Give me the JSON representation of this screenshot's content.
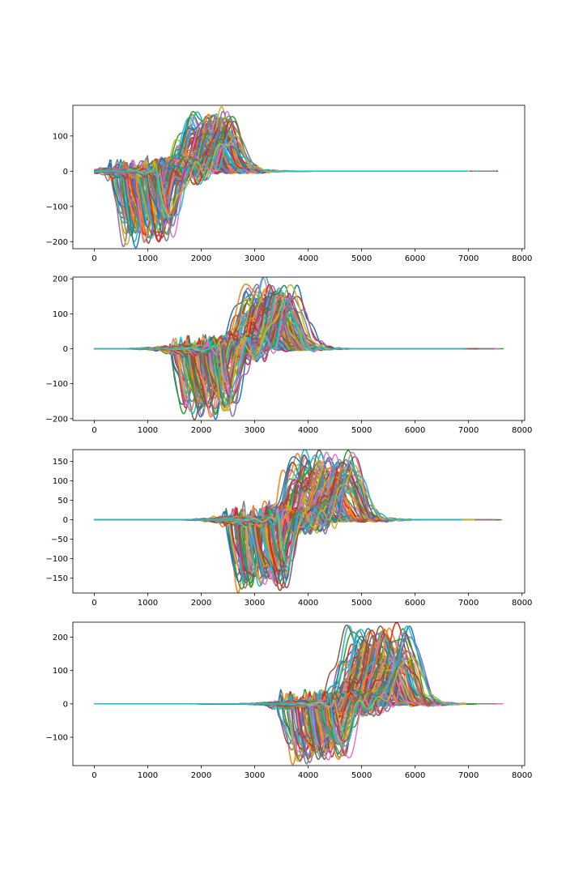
{
  "chart_data": [
    {
      "type": "line",
      "title": "",
      "xlabel": "",
      "ylabel": "",
      "xlim": [
        -400,
        8050
      ],
      "ylim": [
        -220,
        187
      ],
      "xticks": [
        0,
        1000,
        2000,
        3000,
        4000,
        5000,
        6000,
        7000,
        8000
      ],
      "yticks": [
        -200,
        -100,
        0,
        100
      ],
      "grid": false,
      "x_end": 7660,
      "burst": {
        "neg_start": 430,
        "neg_end": 1600,
        "pos_start": 1450,
        "pos_end": 2800,
        "min": -200,
        "max": 168
      }
    },
    {
      "type": "line",
      "title": "",
      "xlabel": "",
      "ylabel": "",
      "xlim": [
        -400,
        8050
      ],
      "ylim": [
        -205,
        205
      ],
      "xticks": [
        0,
        1000,
        2000,
        3000,
        4000,
        5000,
        6000,
        7000,
        8000
      ],
      "yticks": [
        -200,
        -100,
        0,
        100,
        200
      ],
      "grid": false,
      "x_end": 7660,
      "burst": {
        "neg_start": 1540,
        "neg_end": 2750,
        "pos_start": 2500,
        "pos_end": 3950,
        "min": -182,
        "max": 186
      }
    },
    {
      "type": "line",
      "title": "",
      "xlabel": "",
      "ylabel": "",
      "xlim": [
        -400,
        8050
      ],
      "ylim": [
        -188,
        180
      ],
      "xticks": [
        0,
        1000,
        2000,
        3000,
        4000,
        5000,
        6000,
        7000,
        8000
      ],
      "yticks": [
        -150,
        -100,
        -50,
        0,
        50,
        100,
        150
      ],
      "grid": false,
      "x_end": 7660,
      "burst": {
        "neg_start": 2560,
        "neg_end": 3750,
        "pos_start": 3400,
        "pos_end": 5050,
        "min": -170,
        "max": 165
      }
    },
    {
      "type": "line",
      "title": "",
      "xlabel": "",
      "ylabel": "",
      "xlim": [
        -400,
        8050
      ],
      "ylim": [
        -185,
        245
      ],
      "xticks": [
        0,
        1000,
        2000,
        3000,
        4000,
        5000,
        6000,
        7000,
        8000
      ],
      "yticks": [
        -100,
        0,
        100,
        200
      ],
      "grid": false,
      "x_end": 7660,
      "burst": {
        "neg_start": 3560,
        "neg_end": 4850,
        "pos_start": 4400,
        "pos_end": 6150,
        "min": -165,
        "max": 225
      }
    }
  ],
  "colors": [
    "#1f77b4",
    "#ff7f0e",
    "#2ca02c",
    "#d62728",
    "#9467bd",
    "#8c564b",
    "#e377c2",
    "#7f7f7f",
    "#bcbd22",
    "#17becf"
  ]
}
